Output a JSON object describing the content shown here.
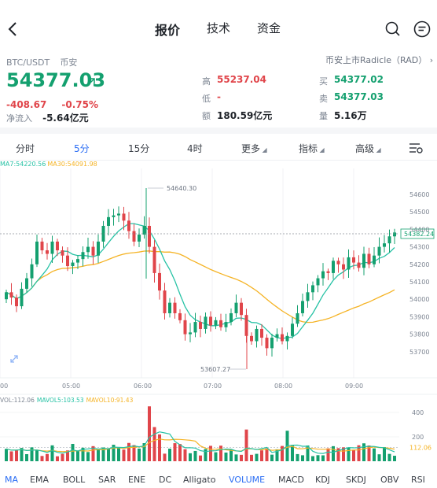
{
  "header": {
    "tabs": [
      {
        "label": "报价",
        "active": true
      },
      {
        "label": "技术",
        "active": false
      },
      {
        "label": "资金",
        "active": false
      }
    ]
  },
  "quote": {
    "pair": "BTC/USDT",
    "exchange": "币安",
    "listing_link": "币安上市Radicle（RAD）",
    "price": "54377.03",
    "change": "-408.67",
    "change_pct": "-0.75%",
    "netflow_label": "净流入",
    "netflow_value": "-5.64亿元",
    "high_label": "高",
    "high_value": "55237.04",
    "low_label": "低",
    "low_value": "-",
    "amount_label": "额",
    "amount_value": "180.59亿元",
    "buy_label": "买",
    "buy_value": "54377.02",
    "sell_label": "卖",
    "sell_value": "54377.03",
    "volume_label": "量",
    "volume_value": "5.16万",
    "colors": {
      "up": "#14a06f",
      "down": "#e0454a",
      "accent": "#2a6df4",
      "ma7": "#27c2a5",
      "ma30": "#f5b324"
    }
  },
  "intervals": [
    {
      "label": "分时",
      "active": false
    },
    {
      "label": "5分",
      "active": true
    },
    {
      "label": "15分",
      "active": false
    },
    {
      "label": "4时",
      "active": false
    },
    {
      "label": "更多",
      "active": false
    },
    {
      "label": "指标",
      "active": false
    },
    {
      "label": "高级",
      "active": false
    }
  ],
  "chart_data": {
    "type": "candlestick",
    "ma_legend": {
      "ma7": "MA7:54220.56",
      "ma30": "MA30:54091.98"
    },
    "max_label": "54640.30",
    "min_label": "53607.27",
    "last_price_label": "54382.24",
    "yticks": [
      "54600",
      "54500",
      "54400",
      "54300",
      "54200",
      "54100",
      "54000",
      "53900",
      "53800",
      "53700"
    ],
    "xticks": [
      "00",
      "05:00",
      "06:00",
      "07:00",
      "08:00",
      "09:00"
    ],
    "volume": {
      "legend": {
        "vol": "VOL:112.06",
        "mavol5": "MAVOL5:103.53",
        "mavol10": "MAVOL10:91.43"
      },
      "yticks": [
        "400",
        "200",
        "112.06"
      ]
    }
  },
  "indicators": [
    {
      "label": "MA",
      "active": true
    },
    {
      "label": "EMA",
      "active": false
    },
    {
      "label": "BOLL",
      "active": false
    },
    {
      "label": "SAR",
      "active": false
    },
    {
      "label": "ENE",
      "active": false
    },
    {
      "label": "DC",
      "active": false
    },
    {
      "label": "Alligato",
      "active": false
    },
    {
      "label": "VOLUME",
      "active": true
    },
    {
      "label": "MACD",
      "active": false
    },
    {
      "label": "KDJ",
      "active": false
    },
    {
      "label": "SKDJ",
      "active": false
    },
    {
      "label": "OBV",
      "active": false
    },
    {
      "label": "RSI",
      "active": false
    }
  ]
}
